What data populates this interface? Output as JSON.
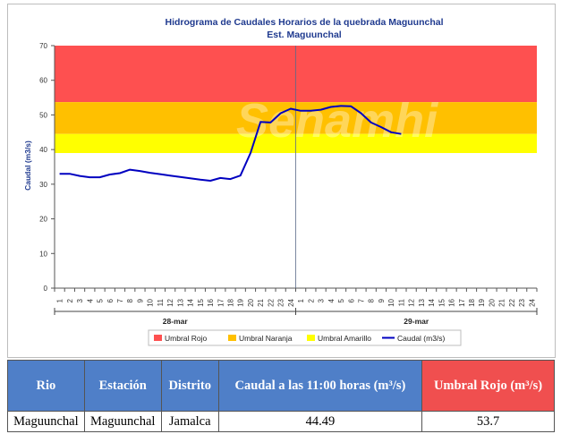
{
  "chart_data": {
    "type": "line",
    "title": "Hidrograma de Caudales Horarios de la quebrada Maguunchal",
    "subtitle": "Est. Maguunchal",
    "ylabel": "Caudal (m3/s)",
    "ylim": [
      0,
      70
    ],
    "y_ticks": [
      0,
      10,
      20,
      30,
      40,
      50,
      60,
      70
    ],
    "x_tick_labels": [
      "1",
      "2",
      "3",
      "4",
      "5",
      "6",
      "7",
      "8",
      "9",
      "10",
      "11",
      "12",
      "13",
      "14",
      "15",
      "16",
      "17",
      "18",
      "19",
      "20",
      "21",
      "22",
      "23",
      "24",
      "1",
      "2",
      "3",
      "4",
      "5",
      "6",
      "7",
      "8",
      "9",
      "10",
      "11",
      "12",
      "13",
      "14",
      "15",
      "16",
      "17",
      "18",
      "19",
      "20",
      "21",
      "22",
      "23",
      "24"
    ],
    "date_labels": [
      "28-mar",
      "29-mar"
    ],
    "thresholds": [
      {
        "name": "Umbral Rojo",
        "from": 53.7,
        "to": 70,
        "color": "#fe5050"
      },
      {
        "name": "Umbral Naranja",
        "from": 44.5,
        "to": 53.7,
        "color": "#ffc000"
      },
      {
        "name": "Umbral Amarillo",
        "from": 39,
        "to": 44.5,
        "color": "#ffff00"
      }
    ],
    "series": [
      {
        "name": "Caudal (m3/s)",
        "color": "#0000c0",
        "values": [
          33,
          33,
          32.4,
          32,
          32,
          32.8,
          33.2,
          34.2,
          33.8,
          33.3,
          32.9,
          32.5,
          32.1,
          31.7,
          31.3,
          31,
          31.8,
          31.5,
          32.5,
          39,
          48,
          47.8,
          50.5,
          51.8,
          51.2,
          51.2,
          51.5,
          52.3,
          52.6,
          52.5,
          50.5,
          47.8,
          46.5,
          45,
          44.5
        ]
      }
    ],
    "legend_position": "bottom",
    "grid": false
  },
  "watermark": "Senamhi",
  "table": {
    "headers": [
      "Rio",
      "Estación",
      "Distrito",
      "Caudal a las 11:00 horas (m³/s)",
      "Umbral Rojo (m³/s)"
    ],
    "row": [
      "Maguunchal",
      "Maguunchal",
      "Jamalca",
      "44.49",
      "53.7"
    ]
  }
}
